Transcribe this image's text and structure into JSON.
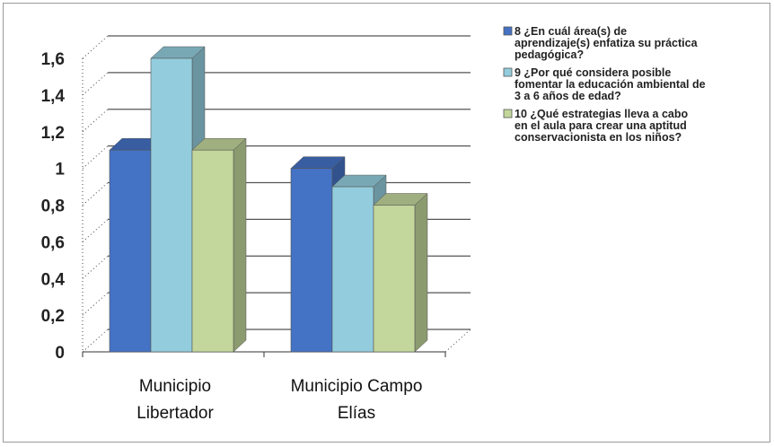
{
  "chart_data": {
    "type": "bar",
    "categories": [
      {
        "line1": "Municipio",
        "line2": "Libertador"
      },
      {
        "line1": "Municipio Campo",
        "line2": "Elías"
      }
    ],
    "series": [
      {
        "name": "8 ¿En cuál área(s) de aprendizaje(s) enfatiza su práctica pedagógica?",
        "values": [
          1.1,
          1.0
        ],
        "color": "#4472c4"
      },
      {
        "name": "9 ¿Por qué considera posible fomentar la educación ambiental de 3 a 6 años de edad?",
        "values": [
          1.6,
          0.9
        ],
        "color": "#93cddd"
      },
      {
        "name": "10 ¿Qué estrategias lleva a cabo en el aula para crear una aptitud conservacionista en los niños?",
        "values": [
          1.1,
          0.8
        ],
        "color": "#c3d69b"
      }
    ],
    "legend_lines": [
      [
        "8 ¿En cuál área(s) de",
        "aprendizaje(s) enfatiza su práctica",
        "pedagógica?"
      ],
      [
        "9 ¿Por qué considera posible",
        "fomentar la educación ambiental de",
        "3 a 6 años de edad?"
      ],
      [
        "10 ¿Qué estrategias lleva a cabo",
        "en el aula para crear una aptitud",
        "conservacionista en los niños?"
      ]
    ],
    "y_ticks": [
      "0",
      "0,2",
      "0,4",
      "0,6",
      "0,8",
      "1",
      "1,2",
      "1,4",
      "1,6"
    ],
    "ylim": [
      0,
      1.6
    ],
    "grid": true,
    "legend_position": "right",
    "style": "3d-clustered-column"
  }
}
